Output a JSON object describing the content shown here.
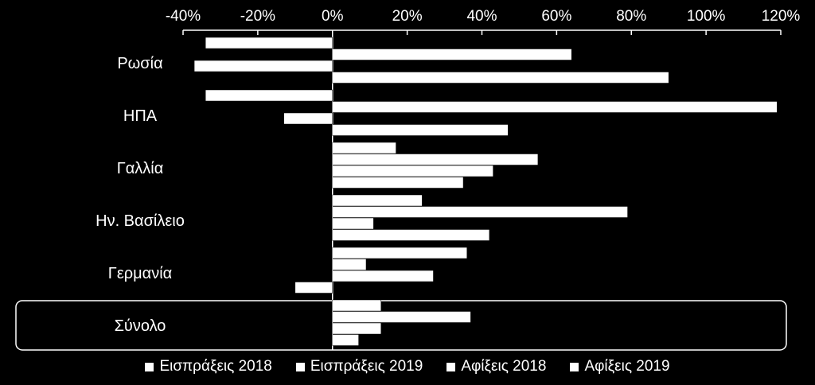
{
  "chart_data": {
    "type": "bar",
    "orientation": "horizontal",
    "categories": [
      "Ρωσία",
      "ΗΠΑ",
      "Γαλλία",
      "Ην.  Βασίλειο",
      "Γερμανία",
      "Σύνολο"
    ],
    "series": [
      {
        "name": "Εισπράξεις 2018",
        "values": [
          -34,
          -34,
          17,
          24,
          36,
          13
        ]
      },
      {
        "name": "Εισπράξεις 2019",
        "values": [
          64,
          119,
          55,
          79,
          9,
          37
        ]
      },
      {
        "name": "Αφίξεις 2018",
        "values": [
          -37,
          -13,
          43,
          11,
          27,
          13
        ]
      },
      {
        "name": "Αφίξεις  2019",
        "values": [
          90,
          47,
          35,
          42,
          -10,
          7
        ]
      }
    ],
    "xlim": [
      -40,
      120
    ],
    "x_ticks": [
      -40,
      -20,
      0,
      20,
      40,
      60,
      80,
      100,
      120
    ],
    "x_tick_labels": [
      "-40%",
      "-20%",
      "0%",
      "20%",
      "40%",
      "60%",
      "80%",
      "100%",
      "120%"
    ],
    "x_axis_position": "top",
    "highlighted_category": "Σύνολο",
    "grid": false,
    "legend_position": "bottom",
    "colors": {
      "background": "#000000",
      "bars": "#ffffff",
      "text": "#ffffff"
    }
  }
}
